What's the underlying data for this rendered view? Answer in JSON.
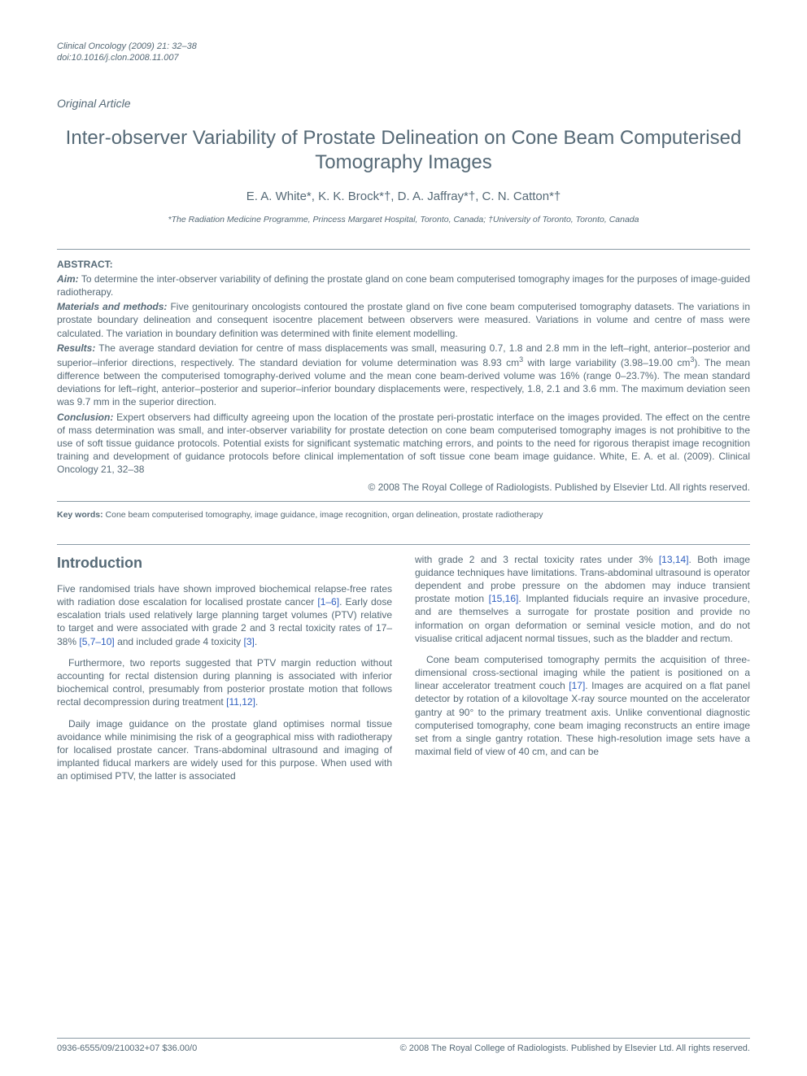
{
  "journal": {
    "citation": "Clinical Oncology (2009) 21: 32–38",
    "doi": "doi:10.1016/j.clon.2008.11.007"
  },
  "article_type": "Original Article",
  "title": "Inter-observer Variability of Prostate Delineation on Cone Beam Computerised Tomography Images",
  "authors": "E. A. White*, K. K. Brock*†, D. A. Jaffray*†, C. N. Catton*†",
  "affiliations": "*The Radiation Medicine Programme, Princess Margaret Hospital, Toronto, Canada; †University of Toronto, Toronto, Canada",
  "abstract": {
    "heading": "ABSTRACT:",
    "aim_label": "Aim:",
    "aim": " To determine the inter-observer variability of defining the prostate gland on cone beam computerised tomography images for the purposes of image-guided radiotherapy.",
    "methods_label": "Materials and methods:",
    "methods": " Five genitourinary oncologists contoured the prostate gland on five cone beam computerised tomography datasets. The variations in prostate boundary delineation and consequent isocentre placement between observers were measured. Variations in volume and centre of mass were calculated. The variation in boundary definition was determined with finite element modelling.",
    "results_label": "Results:",
    "results_a": " The average standard deviation for centre of mass displacements was small, measuring 0.7, 1.8 and 2.8 mm in the left–right, anterior–posterior and superior–inferior directions, respectively. The standard deviation for volume determination was 8.93 cm",
    "results_b": " with large variability (3.98–19.00 cm",
    "results_c": "). The mean difference between the computerised tomography-derived volume and the mean cone beam-derived volume was 16% (range 0–23.7%). The mean standard deviations for left–right, anterior–posterior and superior–inferior boundary displacements were, respectively, 1.8, 2.1 and 3.6 mm. The maximum deviation seen was 9.7 mm in the superior direction.",
    "conclusion_label": "Conclusion:",
    "conclusion": " Expert observers had difficulty agreeing upon the location of the prostate peri-prostatic interface on the images provided. The effect on the centre of mass determination was small, and inter-observer variability for prostate detection on cone beam computerised tomography images is not prohibitive to the use of soft tissue guidance protocols. Potential exists for significant systematic matching errors, and points to the need for rigorous therapist image recognition training and development of guidance protocols before clinical implementation of soft tissue cone beam image guidance. White, E. A. et al. (2009). Clinical Oncology 21, 32–38"
  },
  "copyright": "© 2008 The Royal College of Radiologists. Published by Elsevier Ltd. All rights reserved.",
  "keywords": {
    "label": "Key words:",
    "text": " Cone beam computerised tomography, image guidance, image recognition, organ delineation, prostate radiotherapy"
  },
  "intro_heading": "Introduction",
  "body": {
    "p1a": "Five randomised trials have shown improved biochemical relapse-free rates with radiation dose escalation for localised prostate cancer ",
    "p1_ref1": "[1–6]",
    "p1b": ". Early dose escalation trials used relatively large planning target volumes (PTV) relative to target and were associated with grade 2 and 3 rectal toxicity rates of 17–38% ",
    "p1_ref2": "[5,7–10]",
    "p1c": " and included grade 4 toxicity ",
    "p1_ref3": "[3]",
    "p1d": ".",
    "p2a": "Furthermore, two reports suggested that PTV margin reduction without accounting for rectal distension during planning is associated with inferior biochemical control, presumably from posterior prostate motion that follows rectal decompression during treatment ",
    "p2_ref1": "[11,12]",
    "p2b": ".",
    "p3": "Daily image guidance on the prostate gland optimises normal tissue avoidance while minimising the risk of a geographical miss with radiotherapy for localised prostate cancer. Trans-abdominal ultrasound and imaging of implanted fiducal markers are widely used for this purpose. When used with an optimised PTV, the latter is associated",
    "p4a": "with grade 2 and 3 rectal toxicity rates under 3% ",
    "p4_ref1": "[13,14]",
    "p4b": ". Both image guidance techniques have limitations. Trans-abdominal ultrasound is operator dependent and probe pressure on the abdomen may induce transient prostate motion ",
    "p4_ref2": "[15,16]",
    "p4c": ". Implanted fiducials require an invasive procedure, and are themselves a surrogate for prostate position and provide no information on organ deformation or seminal vesicle motion, and do not visualise critical adjacent normal tissues, such as the bladder and rectum.",
    "p5a": "Cone beam computerised tomography permits the acquisition of three-dimensional cross-sectional imaging while the patient is positioned on a linear accelerator treatment couch ",
    "p5_ref1": "[17]",
    "p5b": ". Images are acquired on a flat panel detector by rotation of a kilovoltage X-ray source mounted on the accelerator gantry at 90° to the primary treatment axis. Unlike conventional diagnostic computerised tomography, cone beam imaging reconstructs an entire image set from a single gantry rotation. These high-resolution image sets have a maximal field of view of 40 cm, and can be"
  },
  "footer": {
    "left": "0936-6555/09/210032+07 $36.00/0",
    "right": "© 2008 The Royal College of Radiologists. Published by Elsevier Ltd. All rights reserved."
  }
}
